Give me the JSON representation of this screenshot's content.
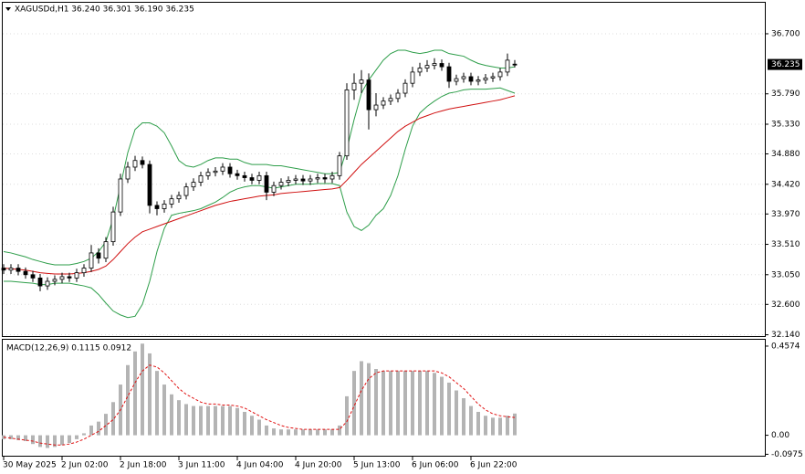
{
  "chart_data": [
    {
      "type": "candlestick",
      "title": "XAGUSDd,H1  36.240 36.301 36.190 36.235",
      "categories": [
        "30 May 2025",
        null,
        null,
        null,
        null,
        null,
        null,
        null,
        "2 Jun 02:00",
        null,
        null,
        null,
        null,
        null,
        null,
        null,
        "2 Jun 18:00",
        null,
        null,
        null,
        null,
        null,
        null,
        null,
        "3 Jun 11:00",
        null,
        null,
        null,
        null,
        null,
        null,
        null,
        "4 Jun 04:00",
        null,
        null,
        null,
        null,
        null,
        null,
        null,
        "4 Jun 20:00",
        null,
        null,
        null,
        null,
        null,
        null,
        null,
        "5 Jun 13:00",
        null,
        null,
        null,
        null,
        null,
        null,
        null,
        "6 Jun 06:00",
        null,
        null,
        null,
        null,
        null,
        null,
        null,
        "6 Jun 22:00",
        null,
        null,
        null,
        null,
        null,
        null
      ],
      "open": [
        33.15,
        33.12,
        33.15,
        33.1,
        33.05,
        33.0,
        32.88,
        32.95,
        32.98,
        33.02,
        33.0,
        33.08,
        33.15,
        33.38,
        33.3,
        33.55,
        34.0,
        34.5,
        34.68,
        34.78,
        34.72,
        34.1,
        34.05,
        34.12,
        34.2,
        34.25,
        34.38,
        34.45,
        34.55,
        34.6,
        34.62,
        34.68,
        34.58,
        34.55,
        34.52,
        34.48,
        34.55,
        34.3,
        34.4,
        34.45,
        34.48,
        34.5,
        34.47,
        34.5,
        34.52,
        34.5,
        34.55,
        34.85,
        35.85,
        35.95,
        36.0,
        35.55,
        35.62,
        35.68,
        35.72,
        35.8,
        35.95,
        36.12,
        36.18,
        36.22,
        36.25,
        36.2,
        35.98,
        36.02,
        36.05,
        35.98,
        36.0,
        36.03,
        36.05,
        36.12,
        36.24
      ],
      "high": [
        33.21,
        33.21,
        33.21,
        33.16,
        33.11,
        33.06,
        33.01,
        33.04,
        33.08,
        33.08,
        33.14,
        33.21,
        33.5,
        33.45,
        33.62,
        34.08,
        34.58,
        34.76,
        34.85,
        34.84,
        34.78,
        34.16,
        34.18,
        34.26,
        34.31,
        34.44,
        34.51,
        34.61,
        34.66,
        34.68,
        34.74,
        34.74,
        34.64,
        34.61,
        34.58,
        34.61,
        34.61,
        34.46,
        34.51,
        34.54,
        34.56,
        34.56,
        34.56,
        34.58,
        34.58,
        34.61,
        34.91,
        35.95,
        36.1,
        36.15,
        36.1,
        35.8,
        35.74,
        35.78,
        35.86,
        36.01,
        36.2,
        36.26,
        36.3,
        36.33,
        36.31,
        36.26,
        36.08,
        36.11,
        36.11,
        36.06,
        36.09,
        36.11,
        36.18,
        36.4,
        36.301
      ],
      "low": [
        33.06,
        33.06,
        33.04,
        32.99,
        32.94,
        32.8,
        32.82,
        32.89,
        32.92,
        32.94,
        32.94,
        33.02,
        33.09,
        33.22,
        33.24,
        33.49,
        33.94,
        34.44,
        34.62,
        34.66,
        33.98,
        33.95,
        33.99,
        34.06,
        34.14,
        34.19,
        34.32,
        34.39,
        34.49,
        34.54,
        34.56,
        34.52,
        34.49,
        34.46,
        34.42,
        34.42,
        34.18,
        34.24,
        34.34,
        34.39,
        34.42,
        34.41,
        34.41,
        34.44,
        34.44,
        34.44,
        34.49,
        34.79,
        35.7,
        35.8,
        35.25,
        35.45,
        35.56,
        35.62,
        35.66,
        35.74,
        35.89,
        36.06,
        36.12,
        36.16,
        36.14,
        35.88,
        35.92,
        35.96,
        35.92,
        35.92,
        35.94,
        35.97,
        35.99,
        36.06,
        36.19
      ],
      "close": [
        33.12,
        33.15,
        33.1,
        33.05,
        33.0,
        32.88,
        32.95,
        32.98,
        33.02,
        33.0,
        33.08,
        33.15,
        33.38,
        33.3,
        33.55,
        34.0,
        34.5,
        34.68,
        34.78,
        34.72,
        34.1,
        34.05,
        34.12,
        34.2,
        34.25,
        34.38,
        34.45,
        34.55,
        34.6,
        34.62,
        34.68,
        34.58,
        34.55,
        34.52,
        34.48,
        34.55,
        34.3,
        34.4,
        34.45,
        34.48,
        34.5,
        34.47,
        34.5,
        34.52,
        34.5,
        34.55,
        34.85,
        35.85,
        35.95,
        36.0,
        35.55,
        35.62,
        35.68,
        35.72,
        35.8,
        35.95,
        36.12,
        36.18,
        36.22,
        36.25,
        36.2,
        35.98,
        36.02,
        36.05,
        35.98,
        36.0,
        36.03,
        36.05,
        36.12,
        36.3,
        36.235
      ],
      "upper_band": [
        33.4,
        33.38,
        33.35,
        33.32,
        33.28,
        33.25,
        33.22,
        33.2,
        33.2,
        33.2,
        33.22,
        33.25,
        33.3,
        33.4,
        33.55,
        33.9,
        34.4,
        34.9,
        35.25,
        35.35,
        35.35,
        35.3,
        35.2,
        35.0,
        34.78,
        34.7,
        34.68,
        34.72,
        34.78,
        34.82,
        34.82,
        34.8,
        34.8,
        34.75,
        34.72,
        34.72,
        34.72,
        34.7,
        34.7,
        34.68,
        34.66,
        34.64,
        34.62,
        34.6,
        34.58,
        34.58,
        34.6,
        34.95,
        35.4,
        35.8,
        36.0,
        36.15,
        36.3,
        36.4,
        36.45,
        36.45,
        36.42,
        36.4,
        36.42,
        36.45,
        36.45,
        36.4,
        36.38,
        36.36,
        36.3,
        36.25,
        36.22,
        36.2,
        36.18,
        36.18,
        36.2
      ],
      "lower_band": [
        32.95,
        32.95,
        32.94,
        32.93,
        32.92,
        32.9,
        32.9,
        32.92,
        32.92,
        32.92,
        32.9,
        32.88,
        32.85,
        32.75,
        32.62,
        32.5,
        32.44,
        32.4,
        32.42,
        32.6,
        32.95,
        33.4,
        33.75,
        33.95,
        33.98,
        34.0,
        34.02,
        34.05,
        34.1,
        34.15,
        34.22,
        34.3,
        34.35,
        34.38,
        34.4,
        34.4,
        34.38,
        34.36,
        34.38,
        34.4,
        34.42,
        34.42,
        34.42,
        34.43,
        34.43,
        34.43,
        34.4,
        34.0,
        33.78,
        33.72,
        33.8,
        33.95,
        34.05,
        34.25,
        34.55,
        34.95,
        35.3,
        35.5,
        35.6,
        35.68,
        35.75,
        35.8,
        35.82,
        35.85,
        35.86,
        35.86,
        35.86,
        35.87,
        35.88,
        35.84,
        35.8
      ],
      "band_color": "#2e9e4a",
      "moving_average": [
        33.15,
        33.14,
        33.13,
        33.12,
        33.1,
        33.08,
        33.07,
        33.06,
        33.06,
        33.06,
        33.07,
        33.08,
        33.1,
        33.13,
        33.18,
        33.28,
        33.4,
        33.52,
        33.62,
        33.7,
        33.74,
        33.78,
        33.82,
        33.86,
        33.9,
        33.94,
        33.98,
        34.02,
        34.06,
        34.1,
        34.13,
        34.16,
        34.18,
        34.2,
        34.22,
        34.24,
        34.25,
        34.26,
        34.28,
        34.29,
        34.3,
        34.31,
        34.32,
        34.33,
        34.34,
        34.35,
        34.37,
        34.48,
        34.6,
        34.72,
        34.82,
        34.92,
        35.02,
        35.12,
        35.22,
        35.3,
        35.36,
        35.42,
        35.46,
        35.5,
        35.53,
        35.56,
        35.58,
        35.6,
        35.62,
        35.64,
        35.66,
        35.68,
        35.7,
        35.73,
        35.76
      ],
      "ma_color": "#d01010",
      "last_price": {
        "value": 36.235,
        "label": "36.235"
      },
      "ylim": [
        32.12,
        37.17
      ],
      "yticks": [
        {
          "value": 36.7,
          "label": "36.700"
        },
        {
          "value": 35.79,
          "label": "35.790"
        },
        {
          "value": 35.33,
          "label": "35.330"
        },
        {
          "value": 34.88,
          "label": "34.880"
        },
        {
          "value": 34.42,
          "label": "34.420"
        },
        {
          "value": 33.97,
          "label": "33.970"
        },
        {
          "value": 33.51,
          "label": "33.510"
        },
        {
          "value": 33.05,
          "label": "33.050"
        },
        {
          "value": 32.6,
          "label": "32.600"
        },
        {
          "value": 32.14,
          "label": "32.140"
        }
      ],
      "grid": true
    },
    {
      "type": "macd",
      "title": "MACD(12,26,9) 0.1115 0.0912",
      "histogram": [
        -0.02,
        -0.02,
        -0.025,
        -0.03,
        -0.045,
        -0.06,
        -0.065,
        -0.06,
        -0.05,
        -0.04,
        -0.02,
        0.01,
        0.05,
        0.07,
        0.11,
        0.17,
        0.26,
        0.36,
        0.43,
        0.47,
        0.42,
        0.33,
        0.26,
        0.21,
        0.18,
        0.16,
        0.15,
        0.15,
        0.15,
        0.15,
        0.15,
        0.15,
        0.14,
        0.12,
        0.1,
        0.08,
        0.05,
        0.035,
        0.03,
        0.03,
        0.03,
        0.03,
        0.03,
        0.03,
        0.03,
        0.03,
        0.05,
        0.2,
        0.33,
        0.38,
        0.37,
        0.34,
        0.33,
        0.33,
        0.33,
        0.33,
        0.33,
        0.33,
        0.33,
        0.32,
        0.3,
        0.27,
        0.23,
        0.19,
        0.15,
        0.12,
        0.1,
        0.09,
        0.09,
        0.1,
        0.1115
      ],
      "histogram_color": "#b4b4b4",
      "signal": [
        -0.01,
        -0.015,
        -0.02,
        -0.025,
        -0.03,
        -0.04,
        -0.045,
        -0.05,
        -0.05,
        -0.045,
        -0.035,
        -0.02,
        0.0,
        0.02,
        0.05,
        0.08,
        0.13,
        0.2,
        0.27,
        0.33,
        0.36,
        0.35,
        0.32,
        0.28,
        0.24,
        0.21,
        0.19,
        0.17,
        0.16,
        0.16,
        0.155,
        0.155,
        0.15,
        0.14,
        0.12,
        0.1,
        0.08,
        0.065,
        0.05,
        0.04,
        0.035,
        0.03,
        0.03,
        0.03,
        0.03,
        0.03,
        0.03,
        0.07,
        0.15,
        0.23,
        0.29,
        0.32,
        0.33,
        0.33,
        0.33,
        0.33,
        0.33,
        0.33,
        0.33,
        0.33,
        0.32,
        0.3,
        0.27,
        0.24,
        0.2,
        0.16,
        0.13,
        0.11,
        0.1,
        0.095,
        0.0912
      ],
      "signal_color": "#e01010",
      "ylim": [
        -0.105,
        0.49
      ],
      "yticks": [
        0.4574,
        {
          "value": 0,
          "label": "0.00"
        },
        -0.0975
      ],
      "grid": false
    }
  ]
}
